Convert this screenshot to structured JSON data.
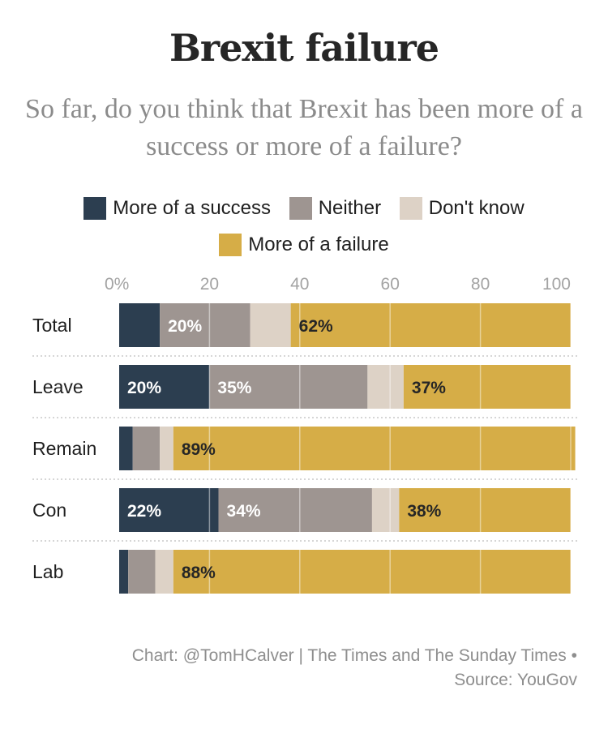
{
  "colors": {
    "success": "#2c3e50",
    "neither": "#9e9591",
    "dont_know": "#ddd2c6",
    "failure": "#d6ad47"
  },
  "chart_data": {
    "type": "bar",
    "orientation": "horizontal",
    "stacked": true,
    "title": "Brexit failure",
    "subtitle": "So far, do you think that Brexit has been more of a success or more of a failure?",
    "categories": [
      "Total",
      "Leave",
      "Remain",
      "Con",
      "Lab"
    ],
    "series": [
      {
        "name": "More of a success",
        "color_key": "success",
        "values": [
          9,
          20,
          3,
          22,
          2
        ]
      },
      {
        "name": "Neither",
        "color_key": "neither",
        "values": [
          20,
          35,
          6,
          34,
          6
        ]
      },
      {
        "name": "Don't know",
        "color_key": "dont_know",
        "values": [
          9,
          8,
          3,
          6,
          4
        ]
      },
      {
        "name": "More of a failure",
        "color_key": "failure",
        "values": [
          62,
          37,
          89,
          38,
          88
        ]
      }
    ],
    "data_labels": [
      {
        "category": "Total",
        "series": "Neither",
        "text": "20%"
      },
      {
        "category": "Total",
        "series": "More of a failure",
        "text": "62%"
      },
      {
        "category": "Leave",
        "series": "More of a success",
        "text": "20%"
      },
      {
        "category": "Leave",
        "series": "Neither",
        "text": "35%"
      },
      {
        "category": "Leave",
        "series": "More of a failure",
        "text": "37%"
      },
      {
        "category": "Remain",
        "series": "More of a failure",
        "text": "89%"
      },
      {
        "category": "Con",
        "series": "More of a success",
        "text": "22%"
      },
      {
        "category": "Con",
        "series": "Neither",
        "text": "34%"
      },
      {
        "category": "Con",
        "series": "More of a failure",
        "text": "38%"
      },
      {
        "category": "Lab",
        "series": "More of a failure",
        "text": "88%"
      }
    ],
    "x_ticks": [
      "0%",
      "20",
      "40",
      "60",
      "80",
      "100"
    ],
    "x_tick_values": [
      0,
      20,
      40,
      60,
      80,
      100
    ],
    "xlim": [
      0,
      100
    ],
    "grid": true,
    "legend_position": "top"
  },
  "legend": [
    {
      "label": "More of a success",
      "color_key": "success"
    },
    {
      "label": "Neither",
      "color_key": "neither"
    },
    {
      "label": "Don't know",
      "color_key": "dont_know"
    },
    {
      "label": "More of a failure",
      "color_key": "failure"
    }
  ],
  "source": {
    "line1": "Chart: @TomHCalver | The Times and The Sunday Times •",
    "line2": "Source: YouGov"
  }
}
